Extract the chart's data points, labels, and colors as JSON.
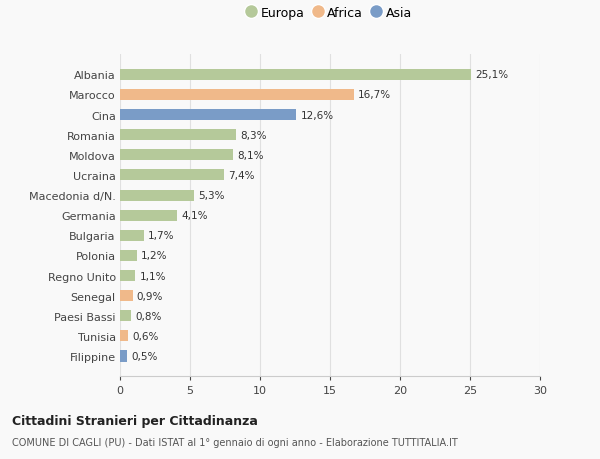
{
  "countries": [
    "Albania",
    "Marocco",
    "Cina",
    "Romania",
    "Moldova",
    "Ucraina",
    "Macedonia d/N.",
    "Germania",
    "Bulgaria",
    "Polonia",
    "Regno Unito",
    "Senegal",
    "Paesi Bassi",
    "Tunisia",
    "Filippine"
  ],
  "values": [
    25.1,
    16.7,
    12.6,
    8.3,
    8.1,
    7.4,
    5.3,
    4.1,
    1.7,
    1.2,
    1.1,
    0.9,
    0.8,
    0.6,
    0.5
  ],
  "labels": [
    "25,1%",
    "16,7%",
    "12,6%",
    "8,3%",
    "8,1%",
    "7,4%",
    "5,3%",
    "4,1%",
    "1,7%",
    "1,2%",
    "1,1%",
    "0,9%",
    "0,8%",
    "0,6%",
    "0,5%"
  ],
  "categories": [
    "Europa",
    "Africa",
    "Asia"
  ],
  "continent": [
    "Europa",
    "Africa",
    "Asia",
    "Europa",
    "Europa",
    "Europa",
    "Europa",
    "Europa",
    "Europa",
    "Europa",
    "Europa",
    "Africa",
    "Europa",
    "Africa",
    "Asia"
  ],
  "colors": {
    "Europa": "#b5c99a",
    "Africa": "#f0b98a",
    "Asia": "#7a9cc7"
  },
  "xlim": [
    0,
    30
  ],
  "xticks": [
    0,
    5,
    10,
    15,
    20,
    25,
    30
  ],
  "title": "Cittadini Stranieri per Cittadinanza",
  "subtitle": "COMUNE DI CAGLI (PU) - Dati ISTAT al 1° gennaio di ogni anno - Elaborazione TUTTITALIA.IT",
  "background_color": "#f9f9f9",
  "grid_color": "#e0e0e0"
}
